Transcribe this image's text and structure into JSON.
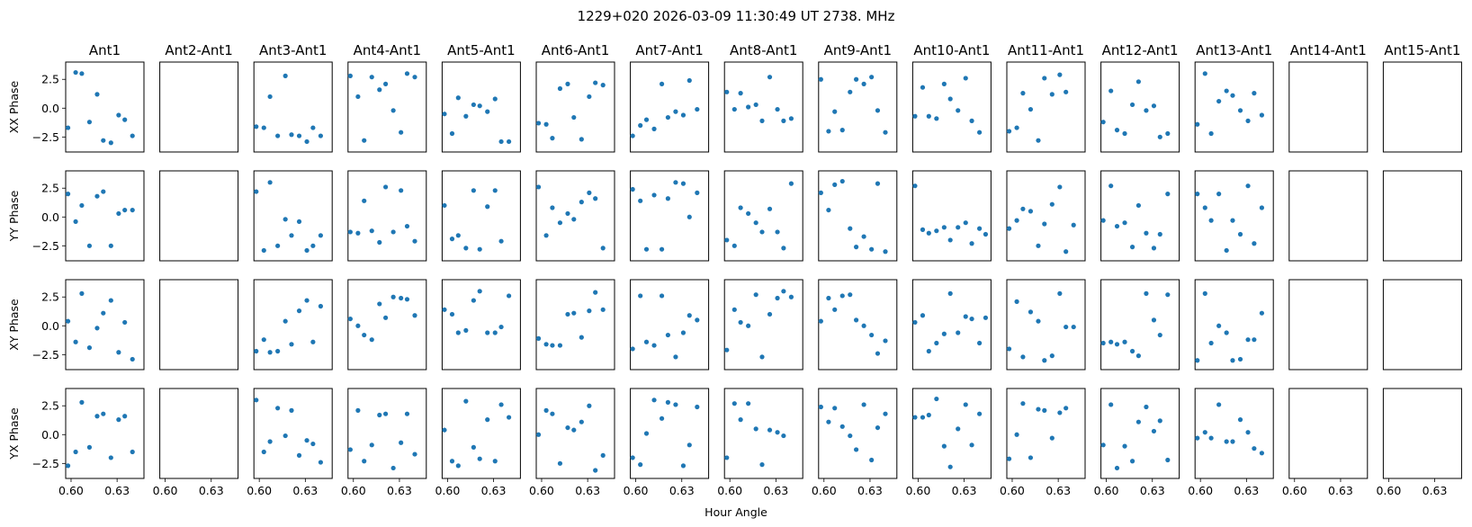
{
  "figure": {
    "title": "1229+020  2026-03-09 11:30:49 UT  2738. MHz",
    "xlabel": "Hour Angle",
    "columns": [
      "Ant1",
      "Ant2-Ant1",
      "Ant3-Ant1",
      "Ant4-Ant1",
      "Ant5-Ant1",
      "Ant6-Ant1",
      "Ant7-Ant1",
      "Ant8-Ant1",
      "Ant9-Ant1",
      "Ant10-Ant1",
      "Ant11-Ant1",
      "Ant12-Ant1",
      "Ant13-Ant1",
      "Ant14-Ant1",
      "Ant15-Ant1"
    ],
    "rows": [
      "XX Phase",
      "YY Phase",
      "XY Phase",
      "YX Phase"
    ],
    "xticks": [
      "0.60",
      "0.63"
    ],
    "yticks": [
      "2.5",
      "0.0",
      "−2.5"
    ]
  },
  "chart_data": {
    "type": "scatter",
    "xlim": [
      0.5965,
      0.6475
    ],
    "ylim": [
      -3.8,
      4.0
    ],
    "xtick_values": [
      0.6,
      0.63
    ],
    "ytick_values": [
      2.5,
      0.0,
      -2.5
    ],
    "marker_color": "#1f77b4",
    "x": [
      0.598,
      0.603,
      0.607,
      0.612,
      0.617,
      0.621,
      0.626,
      0.631,
      0.635,
      0.64,
      0.644
    ],
    "panels": [
      [
        [
          -1.7,
          3.1,
          3.0,
          -1.2,
          1.2,
          -2.8,
          -3.0,
          -0.6,
          -1.0,
          -2.4
        ],
        [],
        [
          -1.6,
          -1.7,
          1.0,
          -2.4,
          2.8,
          -2.3,
          -2.4,
          -2.9,
          -1.7,
          -2.4
        ],
        [
          2.8,
          1.0,
          -2.8,
          2.7,
          1.6,
          2.1,
          -0.2,
          -2.1,
          3.0,
          2.7
        ],
        [
          -0.5,
          -2.2,
          0.9,
          -0.7,
          0.3,
          0.2,
          -0.3,
          0.8,
          -2.9,
          -2.9
        ],
        [
          -1.3,
          -1.4,
          -2.6,
          1.7,
          2.1,
          -0.8,
          -2.7,
          1.0,
          2.2,
          2.0
        ],
        [
          -2.4,
          -1.5,
          -1.0,
          -1.8,
          2.1,
          -0.8,
          -0.3,
          -0.6,
          2.4,
          -0.1
        ],
        [
          1.4,
          -0.1,
          1.3,
          0.1,
          0.3,
          -1.1,
          2.7,
          -0.1,
          -1.1,
          -0.9
        ],
        [
          2.5,
          -2.0,
          -0.3,
          -1.9,
          1.4,
          2.5,
          2.1,
          2.7,
          -0.2,
          -2.1
        ],
        [
          -0.7,
          1.8,
          -0.7,
          -0.9,
          2.1,
          0.8,
          -0.2,
          2.6,
          -1.1,
          -2.1
        ],
        [
          -2.0,
          -1.7,
          1.3,
          -0.1,
          -2.8,
          2.6,
          1.2,
          2.9,
          1.4
        ],
        [
          -1.2,
          1.5,
          -1.9,
          -2.2,
          0.3,
          2.3,
          -0.2,
          0.2,
          -2.5,
          -2.2
        ],
        [
          -1.4,
          3.0,
          -2.2,
          0.6,
          1.5,
          1.1,
          -0.2,
          -1.1,
          1.3,
          -0.6
        ],
        [],
        []
      ],
      [
        [
          2.0,
          -0.4,
          1.0,
          -2.5,
          1.8,
          2.2,
          -2.5,
          0.3,
          0.6,
          0.6
        ],
        [],
        [
          2.2,
          -2.9,
          3.0,
          -2.5,
          -0.2,
          -1.6,
          -0.4,
          -2.9,
          -2.5,
          -1.6
        ],
        [
          -1.3,
          -1.4,
          1.4,
          -1.2,
          -2.2,
          2.6,
          -1.3,
          2.3,
          -0.8,
          -2.1
        ],
        [
          1.0,
          -1.9,
          -1.6,
          -2.7,
          2.3,
          -2.8,
          0.9,
          2.3,
          -2.1
        ],
        [
          2.6,
          -1.6,
          0.8,
          -0.5,
          0.3,
          -0.2,
          1.3,
          2.1,
          1.6,
          -2.7
        ],
        [
          2.4,
          1.4,
          -2.8,
          1.9,
          -2.8,
          1.6,
          3.0,
          2.9,
          0.0,
          2.1
        ],
        [
          -2.0,
          -2.5,
          0.8,
          0.3,
          -0.5,
          -1.3,
          0.7,
          -1.3,
          -2.7,
          2.9
        ],
        [
          2.1,
          0.6,
          2.8,
          3.1,
          -1.0,
          -2.6,
          -1.7,
          -2.8,
          2.9,
          -3.0
        ],
        [
          2.7,
          -1.1,
          -1.4,
          -1.2,
          -0.9,
          -2.0,
          -0.9,
          -0.5,
          -2.3,
          -1.0,
          -1.5
        ],
        [
          -1.0,
          -0.3,
          0.7,
          0.5,
          -2.5,
          -0.6,
          1.1,
          2.6,
          -3.0,
          -0.7
        ],
        [
          -0.3,
          2.7,
          -0.8,
          -0.5,
          -2.6,
          1.0,
          -1.4,
          -2.7,
          -1.5,
          2.0
        ],
        [
          2.0,
          0.8,
          -0.3,
          2.0,
          -2.9,
          -0.3,
          -1.5,
          2.7,
          -2.3,
          0.8
        ],
        [],
        []
      ],
      [
        [
          0.4,
          -1.4,
          2.8,
          -1.9,
          -0.2,
          1.1,
          2.2,
          -2.3,
          0.3,
          -2.9
        ],
        [],
        [
          -2.2,
          -1.2,
          -2.3,
          -2.2,
          0.4,
          -1.6,
          1.3,
          2.2,
          -1.4,
          1.7
        ],
        [
          0.6,
          0.0,
          -0.8,
          -1.2,
          1.9,
          0.7,
          2.5,
          2.4,
          2.3,
          0.9
        ],
        [
          1.4,
          1.0,
          -0.6,
          -0.4,
          2.2,
          3.0,
          -0.6,
          -0.6,
          -0.1,
          2.6
        ],
        [
          -1.1,
          -1.6,
          -1.7,
          -1.7,
          1.0,
          1.1,
          -1.0,
          1.3,
          2.9,
          1.4
        ],
        [
          -2.0,
          2.6,
          -1.4,
          -1.7,
          2.6,
          -0.8,
          -2.7,
          -0.6,
          0.9,
          0.5
        ],
        [
          -2.1,
          1.4,
          0.3,
          0.0,
          2.7,
          -2.7,
          1.0,
          2.4,
          3.0,
          2.5
        ],
        [
          0.4,
          2.4,
          1.4,
          2.6,
          2.7,
          0.5,
          0.0,
          -0.8,
          -2.4,
          -1.3
        ],
        [
          0.3,
          0.9,
          -2.2,
          -1.5,
          -0.7,
          2.8,
          -0.6,
          0.8,
          0.6,
          -1.5,
          0.7
        ],
        [
          -2.0,
          2.1,
          -2.7,
          1.2,
          0.4,
          -3.0,
          -2.6,
          2.8,
          -0.1,
          -0.1
        ],
        [
          -1.5,
          -1.4,
          -1.6,
          -1.4,
          -2.2,
          -2.6,
          2.8,
          0.5,
          -0.8,
          2.7
        ],
        [
          -3.0,
          2.8,
          -1.5,
          0.0,
          -0.6,
          -3.0,
          -2.9,
          -1.2,
          -1.2,
          1.1
        ],
        [],
        []
      ],
      [
        [
          -2.7,
          -1.5,
          2.8,
          -1.1,
          1.6,
          1.8,
          -2.0,
          1.3,
          1.6,
          -1.5
        ],
        [],
        [
          3.0,
          -1.5,
          -0.6,
          2.3,
          -0.1,
          2.1,
          -1.8,
          -0.5,
          -0.8,
          -2.4
        ],
        [
          -1.3,
          2.1,
          -2.3,
          -0.9,
          1.7,
          1.8,
          -2.9,
          -0.7,
          1.8,
          -1.7
        ],
        [
          0.4,
          -2.3,
          -2.7,
          2.9,
          -1.1,
          -2.1,
          1.3,
          -2.3,
          2.6,
          1.5
        ],
        [
          0.0,
          2.1,
          1.8,
          -2.5,
          0.6,
          0.4,
          1.1,
          2.5,
          -3.1,
          -1.8
        ],
        [
          -2.0,
          -2.6,
          0.1,
          3.0,
          1.4,
          2.8,
          2.6,
          -2.7,
          -0.9,
          2.4
        ],
        [
          -2.0,
          2.7,
          1.3,
          2.7,
          0.5,
          -2.6,
          0.4,
          0.2,
          -0.1
        ],
        [
          2.4,
          1.1,
          2.3,
          0.7,
          -0.1,
          -1.3,
          2.6,
          -2.2,
          0.6,
          1.8
        ],
        [
          1.5,
          1.5,
          1.7,
          3.1,
          -1.0,
          -2.8,
          0.5,
          2.6,
          -0.9,
          1.8
        ],
        [
          -2.1,
          0.0,
          2.7,
          -2.0,
          2.2,
          2.1,
          -0.3,
          1.9,
          2.3
        ],
        [
          -0.9,
          2.6,
          -2.9,
          -1.0,
          -2.3,
          1.1,
          2.4,
          0.3,
          1.2,
          -2.2
        ],
        [
          -0.3,
          0.2,
          -0.3,
          2.6,
          -0.6,
          -0.6,
          1.3,
          0.2,
          -1.2,
          -1.6
        ],
        [],
        []
      ]
    ]
  }
}
